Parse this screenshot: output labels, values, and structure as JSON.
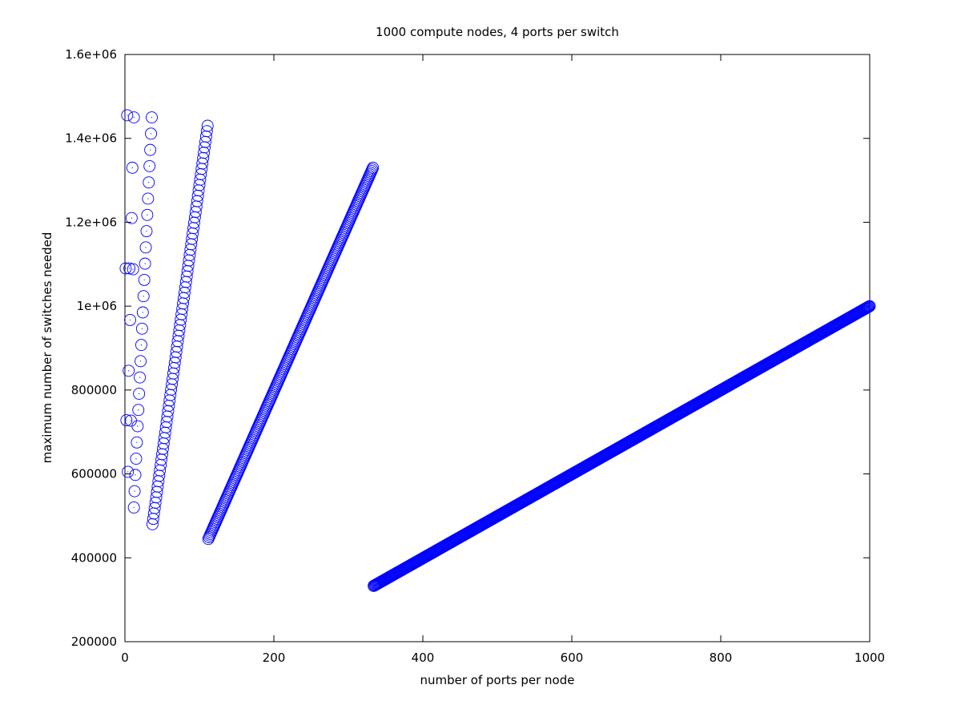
{
  "chart_data": {
    "type": "scatter",
    "title": "1000 compute nodes, 4 ports per switch",
    "xlabel": "number of ports per node",
    "ylabel": "maximum number of switches needed",
    "xlim": [
      0,
      1000
    ],
    "ylim": [
      200000,
      1600000
    ],
    "x_ticks": [
      "0",
      "200",
      "400",
      "600",
      "800",
      "1000"
    ],
    "y_ticks": [
      "200000",
      "400000",
      "600000",
      "800000",
      "1e+06",
      "1.2e+06",
      "1.4e+06",
      "1.6e+06"
    ],
    "grid": false,
    "legend": "none",
    "marker": "circle",
    "marker_color": "#0000ff",
    "series": [
      {
        "segments": [
          {
            "x_start": 1,
            "x_end": 11,
            "step": 1,
            "note_values": "scattered high band"
          },
          {
            "x_start": 12,
            "x_end": 36,
            "step": 1,
            "y_start": 520000,
            "y_end": 1450000
          },
          {
            "x_start": 37,
            "x_end": 111,
            "step": 1,
            "y_start": 480000,
            "y_end": 1430000
          },
          {
            "x_start": 112,
            "x_end": 333,
            "step": 1,
            "y_start": 445000,
            "y_end": 1330000
          },
          {
            "x_start": 334,
            "x_end": 1000,
            "step": 1,
            "y_start": 333000,
            "y_end": 1000000
          }
        ],
        "points_low": [
          {
            "x": 1,
            "y": 1090000
          },
          {
            "x": 2,
            "y": 728000
          },
          {
            "x": 3,
            "y": 1455000
          },
          {
            "x": 4,
            "y": 605000
          },
          {
            "x": 5,
            "y": 846000
          },
          {
            "x": 6,
            "y": 1090000
          },
          {
            "x": 7,
            "y": 967000
          },
          {
            "x": 8,
            "y": 727000
          },
          {
            "x": 9,
            "y": 1210000
          },
          {
            "x": 10,
            "y": 1330000
          },
          {
            "x": 11,
            "y": 1088000
          },
          {
            "x": 12,
            "y": 1450000
          }
        ]
      }
    ]
  }
}
